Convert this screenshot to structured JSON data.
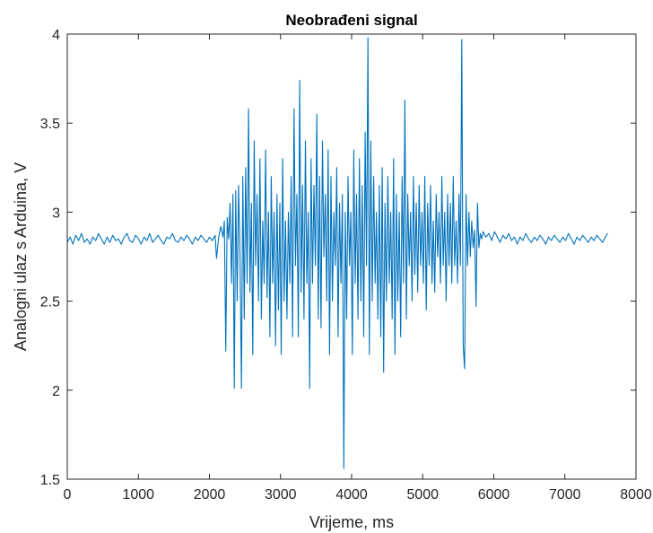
{
  "chart_data": {
    "type": "line",
    "title": "Neobrađeni signal",
    "xlabel": "Vrijeme, ms",
    "ylabel": "Analogni ulaz s Arduina, V",
    "xlim": [
      0,
      8000
    ],
    "ylim": [
      1.5,
      4
    ],
    "x_ticks": [
      0,
      1000,
      2000,
      3000,
      4000,
      5000,
      6000,
      7000,
      8000
    ],
    "x_tick_labels": [
      "0",
      "1000",
      "2000",
      "3000",
      "4000",
      "5000",
      "6000",
      "7000",
      "8000"
    ],
    "y_ticks": [
      1.5,
      2,
      2.5,
      3,
      3.5,
      4
    ],
    "y_tick_labels": [
      "1.5",
      "2",
      "2.5",
      "3",
      "3.5",
      "4"
    ],
    "grid": false,
    "box": true,
    "colors": {
      "series": "#0072BD",
      "axes": "#262626",
      "background": "#ffffff"
    },
    "series": [
      {
        "x_start": 0,
        "x_end": 7600,
        "baseline_v": 2.85,
        "quiet_amplitude_v": 0.04,
        "burst_start_ms": 2150,
        "burst_end_ms": 5850,
        "values_note_removed": true,
        "points": [
          [
            0,
            2.83
          ],
          [
            40,
            2.86
          ],
          [
            80,
            2.82
          ],
          [
            120,
            2.87
          ],
          [
            160,
            2.84
          ],
          [
            200,
            2.88
          ],
          [
            240,
            2.83
          ],
          [
            280,
            2.85
          ],
          [
            320,
            2.82
          ],
          [
            360,
            2.86
          ],
          [
            400,
            2.84
          ],
          [
            440,
            2.88
          ],
          [
            480,
            2.85
          ],
          [
            520,
            2.82
          ],
          [
            560,
            2.86
          ],
          [
            600,
            2.83
          ],
          [
            640,
            2.87
          ],
          [
            680,
            2.84
          ],
          [
            720,
            2.85
          ],
          [
            760,
            2.82
          ],
          [
            800,
            2.86
          ],
          [
            840,
            2.88
          ],
          [
            880,
            2.84
          ],
          [
            920,
            2.83
          ],
          [
            960,
            2.87
          ],
          [
            1000,
            2.85
          ],
          [
            1040,
            2.82
          ],
          [
            1080,
            2.86
          ],
          [
            1120,
            2.84
          ],
          [
            1160,
            2.88
          ],
          [
            1200,
            2.83
          ],
          [
            1240,
            2.85
          ],
          [
            1280,
            2.87
          ],
          [
            1320,
            2.84
          ],
          [
            1360,
            2.82
          ],
          [
            1400,
            2.86
          ],
          [
            1440,
            2.85
          ],
          [
            1480,
            2.88
          ],
          [
            1520,
            2.84
          ],
          [
            1560,
            2.83
          ],
          [
            1600,
            2.86
          ],
          [
            1640,
            2.84
          ],
          [
            1680,
            2.87
          ],
          [
            1720,
            2.85
          ],
          [
            1760,
            2.82
          ],
          [
            1800,
            2.86
          ],
          [
            1840,
            2.84
          ],
          [
            1880,
            2.87
          ],
          [
            1920,
            2.85
          ],
          [
            1960,
            2.83
          ],
          [
            2000,
            2.86
          ],
          [
            2040,
            2.84
          ],
          [
            2080,
            2.87
          ],
          [
            2100,
            2.74
          ],
          [
            2130,
            2.86
          ],
          [
            2160,
            2.92
          ],
          [
            2190,
            2.86
          ],
          [
            2210,
            2.95
          ],
          [
            2230,
            2.22
          ],
          [
            2250,
            2.97
          ],
          [
            2270,
            2.85
          ],
          [
            2290,
            3.05
          ],
          [
            2310,
            2.6
          ],
          [
            2330,
            3.1
          ],
          [
            2350,
            2.01
          ],
          [
            2370,
            3.12
          ],
          [
            2390,
            2.5
          ],
          [
            2410,
            3.15
          ],
          [
            2430,
            2.75
          ],
          [
            2450,
            2.01
          ],
          [
            2470,
            3.2
          ],
          [
            2490,
            2.4
          ],
          [
            2510,
            3.25
          ],
          [
            2530,
            2.6
          ],
          [
            2550,
            3.58
          ],
          [
            2570,
            2.55
          ],
          [
            2590,
            3.05
          ],
          [
            2610,
            2.2
          ],
          [
            2630,
            3.4
          ],
          [
            2650,
            2.7
          ],
          [
            2670,
            3.1
          ],
          [
            2690,
            2.5
          ],
          [
            2710,
            3.3
          ],
          [
            2730,
            2.4
          ],
          [
            2750,
            2.95
          ],
          [
            2770,
            2.6
          ],
          [
            2790,
            3.35
          ],
          [
            2810,
            2.52
          ],
          [
            2830,
            3.0
          ],
          [
            2850,
            2.3
          ],
          [
            2870,
            3.2
          ],
          [
            2890,
            2.6
          ],
          [
            2910,
            3.0
          ],
          [
            2930,
            2.25
          ],
          [
            2950,
            3.1
          ],
          [
            2970,
            2.45
          ],
          [
            2990,
            3.05
          ],
          [
            3010,
            2.2
          ],
          [
            3030,
            3.3
          ],
          [
            3050,
            2.5
          ],
          [
            3070,
            2.95
          ],
          [
            3090,
            2.4
          ],
          [
            3110,
            3.0
          ],
          [
            3130,
            2.6
          ],
          [
            3150,
            3.2
          ],
          [
            3170,
            2.3
          ],
          [
            3190,
            3.58
          ],
          [
            3210,
            2.7
          ],
          [
            3230,
            3.1
          ],
          [
            3250,
            2.3
          ],
          [
            3270,
            3.74
          ],
          [
            3290,
            2.55
          ],
          [
            3310,
            3.15
          ],
          [
            3330,
            2.4
          ],
          [
            3350,
            3.4
          ],
          [
            3370,
            2.6
          ],
          [
            3390,
            3.0
          ],
          [
            3410,
            2.01
          ],
          [
            3430,
            3.3
          ],
          [
            3450,
            2.6
          ],
          [
            3470,
            3.15
          ],
          [
            3490,
            2.7
          ],
          [
            3510,
            3.55
          ],
          [
            3530,
            2.4
          ],
          [
            3550,
            3.2
          ],
          [
            3570,
            2.35
          ],
          [
            3590,
            3.4
          ],
          [
            3610,
            2.75
          ],
          [
            3630,
            3.1
          ],
          [
            3650,
            2.5
          ],
          [
            3670,
            3.35
          ],
          [
            3690,
            2.2
          ],
          [
            3710,
            3.2
          ],
          [
            3730,
            2.5
          ],
          [
            3750,
            3.0
          ],
          [
            3770,
            2.7
          ],
          [
            3790,
            3.25
          ],
          [
            3810,
            2.3
          ],
          [
            3830,
            3.05
          ],
          [
            3850,
            2.6
          ],
          [
            3870,
            3.1
          ],
          [
            3890,
            1.56
          ],
          [
            3910,
            3.0
          ],
          [
            3930,
            2.4
          ],
          [
            3950,
            3.2
          ],
          [
            3970,
            2.7
          ],
          [
            3990,
            3.0
          ],
          [
            4010,
            2.2
          ],
          [
            4030,
            3.35
          ],
          [
            4050,
            2.6
          ],
          [
            4070,
            3.1
          ],
          [
            4090,
            2.4
          ],
          [
            4110,
            3.3
          ],
          [
            4130,
            2.5
          ],
          [
            4150,
            3.15
          ],
          [
            4170,
            2.3
          ],
          [
            4190,
            3.45
          ],
          [
            4210,
            2.7
          ],
          [
            4230,
            3.98
          ],
          [
            4250,
            2.2
          ],
          [
            4270,
            3.4
          ],
          [
            4290,
            2.5
          ],
          [
            4310,
            3.2
          ],
          [
            4330,
            2.6
          ],
          [
            4350,
            3.0
          ],
          [
            4370,
            2.4
          ],
          [
            4390,
            3.15
          ],
          [
            4410,
            2.3
          ],
          [
            4430,
            3.25
          ],
          [
            4450,
            2.1
          ],
          [
            4470,
            3.05
          ],
          [
            4490,
            2.5
          ],
          [
            4510,
            3.2
          ],
          [
            4530,
            2.6
          ],
          [
            4550,
            3.0
          ],
          [
            4570,
            2.4
          ],
          [
            4590,
            3.3
          ],
          [
            4610,
            2.2
          ],
          [
            4630,
            3.1
          ],
          [
            4650,
            2.5
          ],
          [
            4670,
            3.0
          ],
          [
            4690,
            2.3
          ],
          [
            4710,
            3.2
          ],
          [
            4730,
            2.6
          ],
          [
            4750,
            3.63
          ],
          [
            4770,
            2.4
          ],
          [
            4790,
            3.1
          ],
          [
            4810,
            2.7
          ],
          [
            4830,
            3.0
          ],
          [
            4850,
            2.5
          ],
          [
            4870,
            3.2
          ],
          [
            4890,
            2.65
          ],
          [
            4910,
            3.05
          ],
          [
            4930,
            2.55
          ],
          [
            4950,
            3.15
          ],
          [
            4970,
            2.7
          ],
          [
            4990,
            3.0
          ],
          [
            5010,
            2.6
          ],
          [
            5030,
            3.2
          ],
          [
            5050,
            2.45
          ],
          [
            5070,
            3.05
          ],
          [
            5090,
            2.7
          ],
          [
            5110,
            3.15
          ],
          [
            5130,
            2.6
          ],
          [
            5150,
            2.95
          ],
          [
            5170,
            2.55
          ],
          [
            5190,
            3.1
          ],
          [
            5210,
            2.75
          ],
          [
            5230,
            3.0
          ],
          [
            5250,
            2.6
          ],
          [
            5270,
            3.2
          ],
          [
            5290,
            2.7
          ],
          [
            5310,
            3.0
          ],
          [
            5330,
            2.5
          ],
          [
            5350,
            3.1
          ],
          [
            5370,
            2.7
          ],
          [
            5390,
            3.05
          ],
          [
            5410,
            2.6
          ],
          [
            5430,
            3.2
          ],
          [
            5450,
            2.7
          ],
          [
            5470,
            2.95
          ],
          [
            5490,
            2.6
          ],
          [
            5510,
            3.1
          ],
          [
            5530,
            2.7
          ],
          [
            5550,
            3.97
          ],
          [
            5570,
            2.25
          ],
          [
            5590,
            2.12
          ],
          [
            5610,
            3.1
          ],
          [
            5630,
            2.7
          ],
          [
            5650,
            3.0
          ],
          [
            5670,
            2.75
          ],
          [
            5690,
            2.95
          ],
          [
            5710,
            2.8
          ],
          [
            5730,
            2.9
          ],
          [
            5750,
            2.47
          ],
          [
            5770,
            3.05
          ],
          [
            5790,
            2.8
          ],
          [
            5810,
            2.88
          ],
          [
            5830,
            2.85
          ],
          [
            5850,
            2.89
          ],
          [
            5890,
            2.86
          ],
          [
            5930,
            2.88
          ],
          [
            5970,
            2.84
          ],
          [
            6010,
            2.89
          ],
          [
            6050,
            2.86
          ],
          [
            6090,
            2.83
          ],
          [
            6130,
            2.87
          ],
          [
            6170,
            2.85
          ],
          [
            6210,
            2.88
          ],
          [
            6250,
            2.84
          ],
          [
            6290,
            2.86
          ],
          [
            6330,
            2.82
          ],
          [
            6370,
            2.86
          ],
          [
            6410,
            2.84
          ],
          [
            6450,
            2.88
          ],
          [
            6490,
            2.85
          ],
          [
            6530,
            2.83
          ],
          [
            6570,
            2.86
          ],
          [
            6610,
            2.84
          ],
          [
            6650,
            2.87
          ],
          [
            6690,
            2.85
          ],
          [
            6730,
            2.82
          ],
          [
            6770,
            2.86
          ],
          [
            6810,
            2.84
          ],
          [
            6850,
            2.87
          ],
          [
            6890,
            2.85
          ],
          [
            6930,
            2.83
          ],
          [
            6970,
            2.86
          ],
          [
            7010,
            2.84
          ],
          [
            7050,
            2.88
          ],
          [
            7090,
            2.85
          ],
          [
            7130,
            2.82
          ],
          [
            7170,
            2.86
          ],
          [
            7210,
            2.84
          ],
          [
            7250,
            2.87
          ],
          [
            7290,
            2.85
          ],
          [
            7330,
            2.83
          ],
          [
            7370,
            2.86
          ],
          [
            7410,
            2.84
          ],
          [
            7450,
            2.87
          ],
          [
            7490,
            2.85
          ],
          [
            7530,
            2.83
          ],
          [
            7570,
            2.86
          ],
          [
            7600,
            2.88
          ]
        ]
      }
    ]
  }
}
